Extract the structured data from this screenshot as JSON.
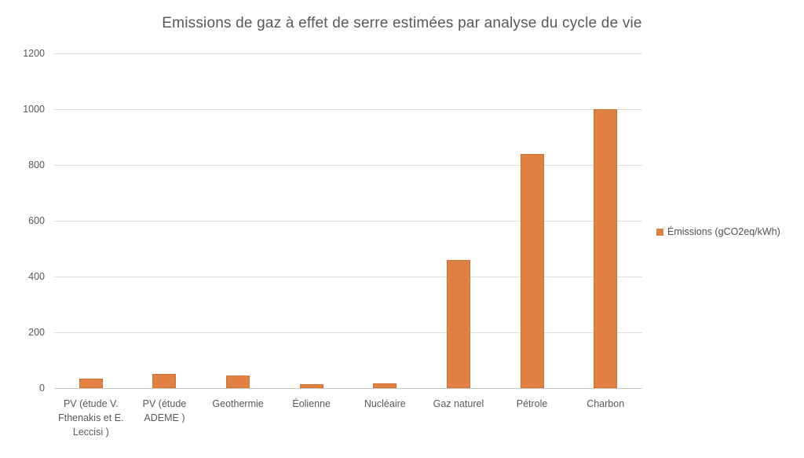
{
  "chart_data": {
    "type": "bar",
    "title": "Emissions de gaz à effet de serre estimées par analyse du cycle de vie",
    "series_name": "Émissions (gCO2eq/kWh)",
    "categories": [
      "PV (étude V. Fthenakis et E. Leccisi )",
      "PV (étude ADEME )",
      "Geothermie",
      "Éolienne",
      "Nucléaire",
      "Gaz naturel",
      "Pétrole",
      "Charbon"
    ],
    "category_lines": [
      [
        "PV (étude V.",
        "Fthenakis et E.",
        "Leccisi )"
      ],
      [
        "PV (étude",
        "ADEME )"
      ],
      [
        "Geothermie"
      ],
      [
        "Éolienne"
      ],
      [
        "Nucléaire"
      ],
      [
        "Gaz naturel"
      ],
      [
        "Pétrole"
      ],
      [
        "Charbon"
      ]
    ],
    "values": [
      33,
      50,
      45,
      13,
      16,
      460,
      840,
      1000
    ],
    "ylim": [
      0,
      1200
    ],
    "yticks": [
      0,
      200,
      400,
      600,
      800,
      1000,
      1200
    ],
    "ylabel": "",
    "xlabel": "",
    "grid": true,
    "legend_position": "right",
    "bar_color": "#e08143",
    "bar_border_color": "#d1742f",
    "grid_color": "#dedede",
    "axis_line_color": "#c9c9c9",
    "text_color": "#595959"
  }
}
